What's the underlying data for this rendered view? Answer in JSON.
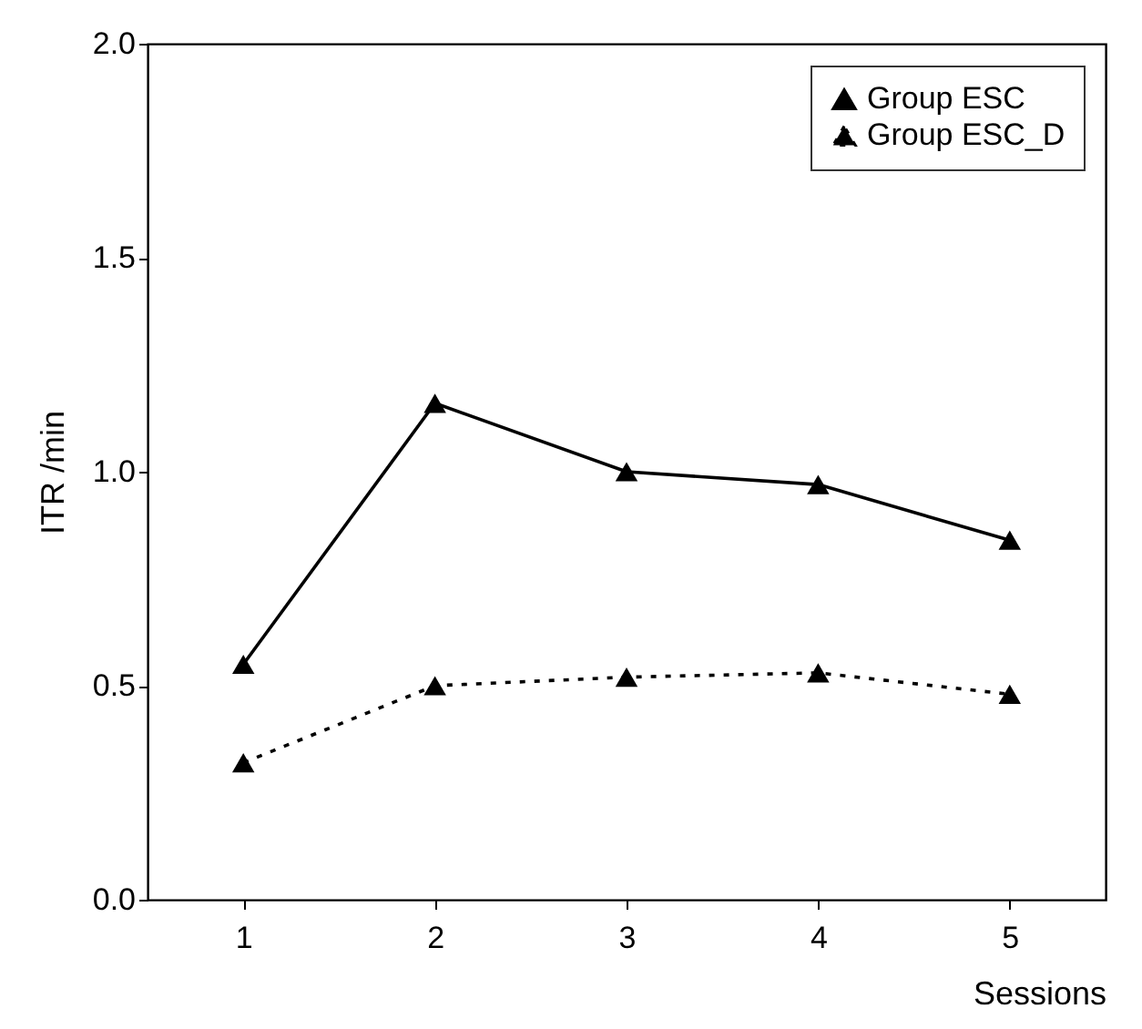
{
  "chart_data": {
    "type": "line",
    "xlabel": "Sessions",
    "ylabel": "ITR /min",
    "x": [
      1,
      2,
      3,
      4,
      5
    ],
    "series": [
      {
        "name": "Group ESC",
        "color": "#000000",
        "line_style": "solid",
        "values": [
          0.55,
          1.16,
          1.0,
          0.97,
          0.84
        ]
      },
      {
        "name": "Group ESC_D",
        "color": "#000000",
        "line_style": "dotted",
        "values": [
          0.32,
          0.5,
          0.52,
          0.53,
          0.48
        ]
      }
    ],
    "xlim": [
      0.5,
      5.5
    ],
    "xticks": [
      1,
      2,
      3,
      4,
      5
    ],
    "ylim": [
      0,
      2
    ],
    "yticks": [
      {
        "value": 0,
        "label": "0.0"
      },
      0.5,
      {
        "value": 1,
        "label": "1.0"
      },
      1.5,
      {
        "value": 2,
        "label": "2.0"
      }
    ],
    "grid": false,
    "legend": "top right",
    "marker": "triangle"
  }
}
